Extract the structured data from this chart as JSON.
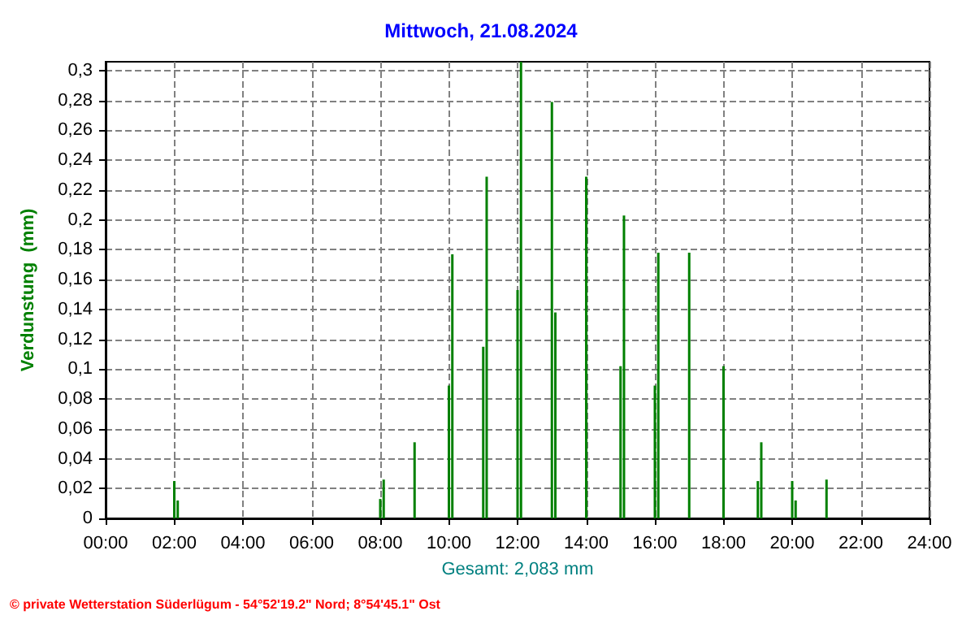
{
  "chart_data": {
    "type": "bar",
    "title": "Mittwoch, 21.08.2024",
    "ylabel": "Verdunstung  (mm)",
    "xlabel": "Gesamt: 2,083 mm",
    "annotations": [
      "© private Wetterstation Süderlügum - 54°52'19.2\" Nord; 8°54'45.1\" Ost"
    ],
    "x": [
      2.0,
      2.1,
      8.0,
      8.1,
      9.0,
      10.0,
      10.1,
      11.0,
      11.1,
      12.0,
      12.1,
      13.0,
      13.1,
      14.0,
      15.0,
      15.1,
      16.0,
      16.1,
      17.0,
      18.0,
      19.0,
      19.1,
      20.0,
      20.1,
      21.0
    ],
    "series": [
      {
        "color": "#008000",
        "values": [
          0.025,
          0.012,
          0.013,
          0.026,
          0.051,
          0.089,
          0.177,
          0.115,
          0.229,
          0.153,
          0.306,
          0.279,
          0.138,
          0.229,
          0.102,
          0.203,
          0.089,
          0.178,
          0.178,
          0.102,
          0.025,
          0.051,
          0.025,
          0.012,
          0.026
        ]
      }
    ],
    "xlim": [
      0,
      24
    ],
    "xticks": [
      {
        "value": 0,
        "label": "00:00"
      },
      {
        "value": 2,
        "label": "02:00"
      },
      {
        "value": 4,
        "label": "04:00"
      },
      {
        "value": 6,
        "label": "06:00"
      },
      {
        "value": 8,
        "label": "08:00"
      },
      {
        "value": 10,
        "label": "10:00"
      },
      {
        "value": 12,
        "label": "12:00"
      },
      {
        "value": 14,
        "label": "14:00"
      },
      {
        "value": 16,
        "label": "16:00"
      },
      {
        "value": 18,
        "label": "18:00"
      },
      {
        "value": 20,
        "label": "20:00"
      },
      {
        "value": 22,
        "label": "22:00"
      },
      {
        "value": 24,
        "label": "24:00"
      }
    ],
    "ylim": [
      0,
      0.306
    ],
    "yticks": [
      0,
      {
        "value": 0.02,
        "label": "0,02"
      },
      {
        "value": 0.04,
        "label": "0,04"
      },
      {
        "value": 0.06,
        "label": "0,06"
      },
      {
        "value": 0.08,
        "label": "0,08"
      },
      {
        "value": 0.1,
        "label": "0,1"
      },
      {
        "value": 0.12,
        "label": "0,12"
      },
      {
        "value": 0.14,
        "label": "0,14"
      },
      {
        "value": 0.16,
        "label": "0,16"
      },
      {
        "value": 0.18,
        "label": "0,18"
      },
      {
        "value": 0.2,
        "label": "0,2"
      },
      {
        "value": 0.22,
        "label": "0,22"
      },
      {
        "value": 0.24,
        "label": "0,24"
      },
      {
        "value": 0.26,
        "label": "0,26"
      },
      {
        "value": 0.28,
        "label": "0,28"
      },
      {
        "value": 0.3,
        "label": "0,3"
      }
    ],
    "grid": true
  }
}
